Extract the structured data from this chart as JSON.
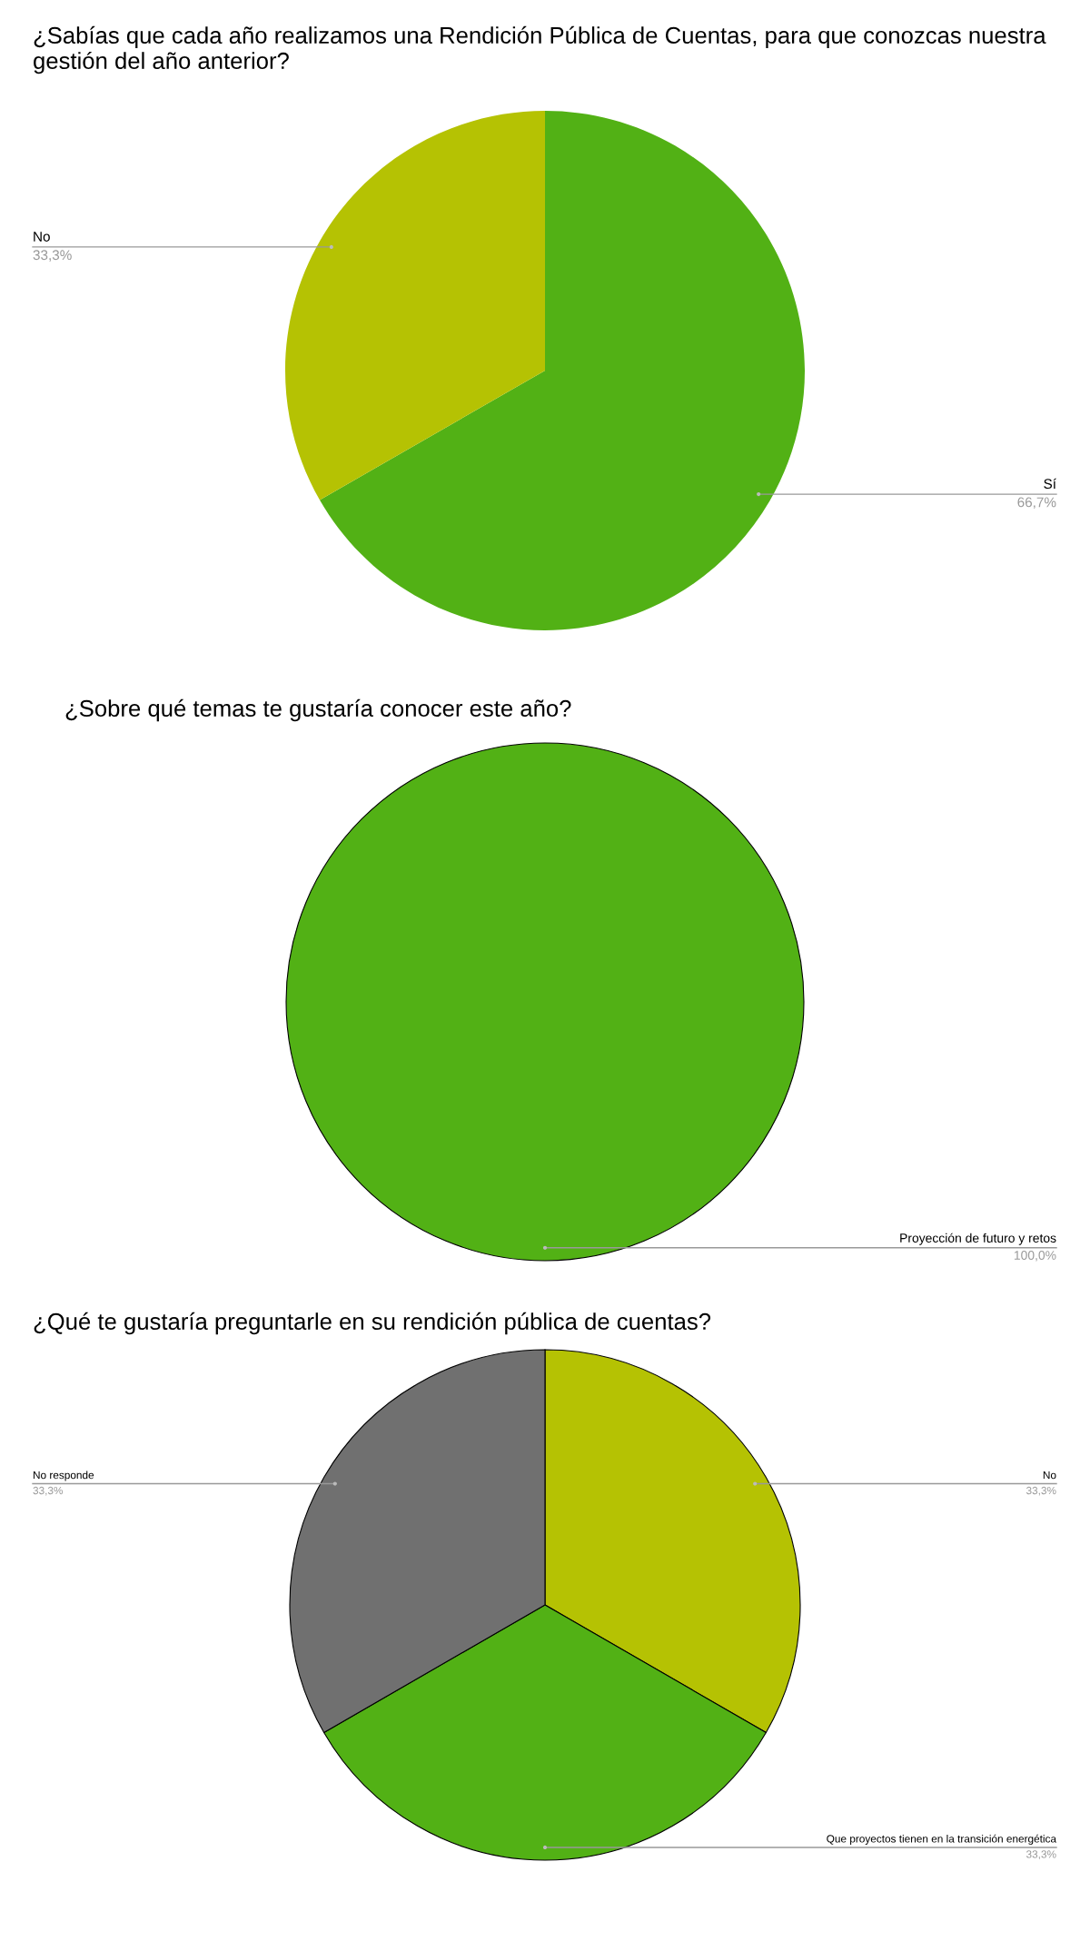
{
  "chart_data": [
    {
      "type": "pie",
      "title": "¿Sabías que cada año realizamos una Rendición Pública de Cuentas, para que conozcas nuestra gestión del año anterior?",
      "categories": [
        "Sí",
        "No"
      ],
      "values": [
        66.7,
        33.3
      ],
      "value_labels": [
        "66,7%",
        "33,3%"
      ],
      "colors": [
        "#52b115",
        "#b5c203"
      ]
    },
    {
      "type": "pie",
      "title": "¿Sobre qué temas te gustaría conocer este año?",
      "categories": [
        "Proyección de futuro y retos"
      ],
      "values": [
        100
      ],
      "value_labels": [
        "100,0%"
      ],
      "colors": [
        "#52b115"
      ]
    },
    {
      "type": "pie",
      "title": "¿Qué te gustaría preguntarle en su rendición pública de cuentas?",
      "categories": [
        "No",
        "Que proyectos tienen en la transición energética",
        "No responde"
      ],
      "values": [
        33.3,
        33.3,
        33.3
      ],
      "value_labels": [
        "33,3%",
        "33,3%",
        "33,3%"
      ],
      "colors": [
        "#b5c203",
        "#52b115",
        "#707070"
      ]
    }
  ]
}
